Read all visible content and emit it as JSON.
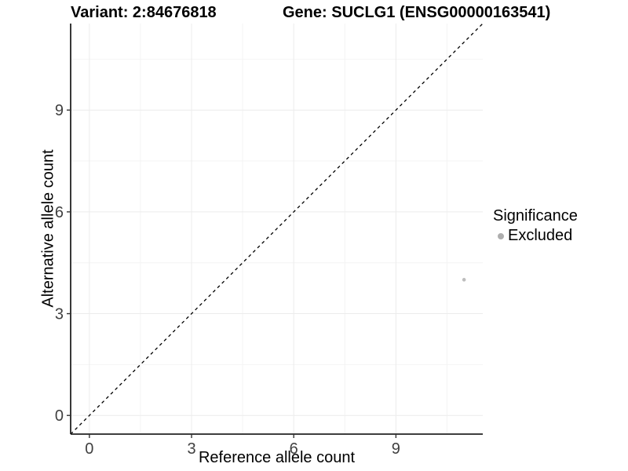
{
  "header": {
    "variant_title": "Variant: 2:84676818",
    "gene_title": "Gene: SUCLG1 (ENSG00000163541)"
  },
  "axes": {
    "x_label": "Reference allele count",
    "y_label": "Alternative allele count"
  },
  "legend": {
    "title": "Significance",
    "entries": [
      {
        "label": "Excluded",
        "color": "#aeaeae"
      }
    ]
  },
  "chart_data": {
    "type": "scatter",
    "title": "Variant: 2:84676818  /  Gene: SUCLG1 (ENSG00000163541)",
    "xlabel": "Reference allele count",
    "ylabel": "Alternative allele count",
    "xlim": [
      -0.55,
      11.55
    ],
    "ylim": [
      -0.55,
      11.55
    ],
    "x_ticks": [
      0,
      3,
      6,
      9
    ],
    "y_ticks": [
      0,
      3,
      6,
      9
    ],
    "x_minor_ticks": [
      1.5,
      4.5,
      7.5,
      10.5
    ],
    "y_minor_ticks": [
      1.5,
      4.5,
      7.5,
      10.5
    ],
    "grid": true,
    "legend_position": "right",
    "series": [
      {
        "name": "Excluded",
        "points": [
          {
            "x": 11,
            "y": 4
          }
        ],
        "color": "#bdbdbd"
      }
    ],
    "reference_line": {
      "slope": 1,
      "intercept": 0,
      "style": "dashed",
      "color": "#000000"
    },
    "colors": {
      "panel_background": "#ffffff",
      "grid_major": "#ececec",
      "grid_minor": "#f4f4f4",
      "axis_line": "#222222",
      "tick_mark": "#333333",
      "tick_label": "#404040"
    }
  }
}
